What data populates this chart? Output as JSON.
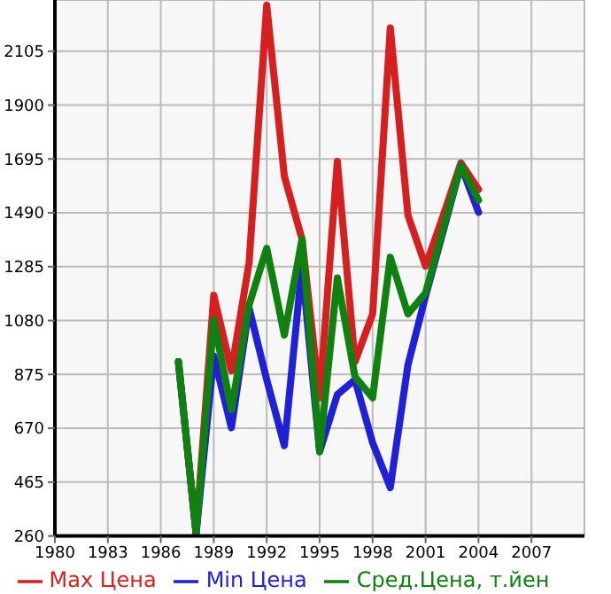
{
  "chart_data": {
    "type": "line",
    "x": [
      1987,
      1988,
      1989,
      1990,
      1991,
      1992,
      1993,
      1994,
      1995,
      1996,
      1997,
      1998,
      1999,
      2000,
      2001,
      2002,
      2003,
      2004
    ],
    "series": [
      {
        "name": "Max Цена",
        "color": "#d42020",
        "values": [
          923,
          270,
          1176,
          889,
          1300,
          2280,
          1629,
          1390,
          786,
          1686,
          923,
          1105,
          2194,
          1481,
          1287,
          1480,
          1680,
          1579
        ]
      },
      {
        "name": "Min Цена",
        "color": "#2020d4",
        "values": [
          923,
          270,
          945,
          672,
          1128,
          855,
          604,
          1287,
          581,
          798,
          855,
          615,
          444,
          911,
          1173,
          1420,
          1670,
          1492
        ]
      },
      {
        "name": "Сред.Цена, т.йен",
        "color": "#108010",
        "values": [
          923,
          270,
          1082,
          740,
          1139,
          1355,
          1025,
          1390,
          581,
          1242,
          866,
          786,
          1321,
          1105,
          1185,
          1430,
          1670,
          1538
        ]
      }
    ],
    "xlim": [
      1980,
      2010
    ],
    "xticks": [
      1980,
      1983,
      1986,
      1989,
      1992,
      1995,
      1998,
      2001,
      2004,
      2007
    ],
    "ylim": [
      260,
      2300
    ],
    "yticks": [
      260,
      465,
      670,
      875,
      1080,
      1285,
      1490,
      1695,
      1900,
      2105
    ],
    "grid": true,
    "legend": "bottom",
    "marker": "none",
    "line_style": "solid"
  }
}
